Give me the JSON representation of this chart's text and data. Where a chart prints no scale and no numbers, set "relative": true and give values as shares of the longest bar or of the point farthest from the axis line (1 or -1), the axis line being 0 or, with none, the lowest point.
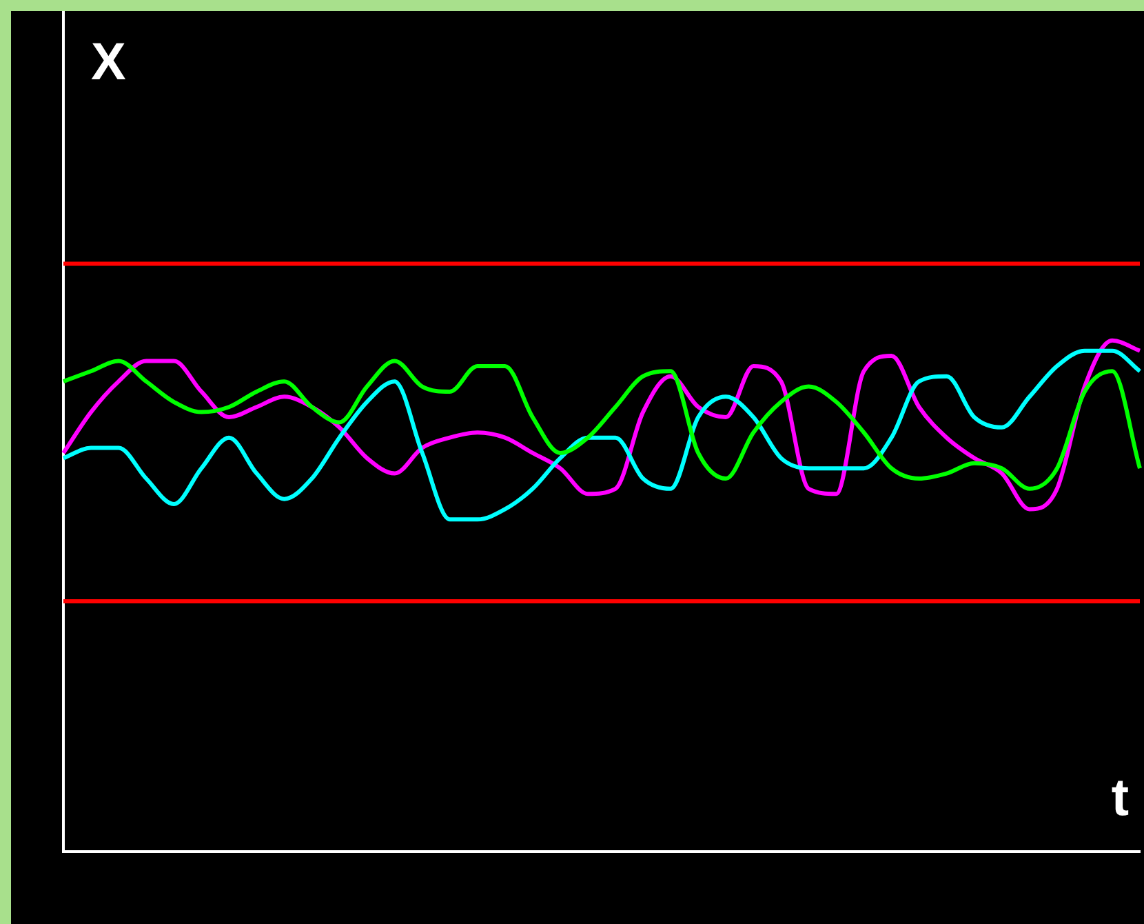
{
  "chart_data": {
    "type": "line",
    "relative": true,
    "xlabel": "t",
    "ylabel": "X",
    "legend": false,
    "marker": "none",
    "line_style": "solid",
    "categories": [
      null,
      null,
      null,
      null,
      null,
      null,
      null,
      null,
      null,
      null,
      null,
      null,
      null,
      null,
      null,
      null,
      null,
      null,
      null,
      null,
      null,
      null,
      null,
      null,
      null,
      null,
      null,
      null,
      null,
      null,
      null,
      null,
      null,
      null,
      null,
      null,
      null,
      null,
      null,
      null
    ],
    "series": [
      {
        "color": "#00ff00",
        "values": [
          0.92,
          0.94,
          0.96,
          0.92,
          0.88,
          0.86,
          0.87,
          0.9,
          0.92,
          0.87,
          0.84,
          0.91,
          0.96,
          0.91,
          0.9,
          0.95,
          0.95,
          0.85,
          0.78,
          0.81,
          0.87,
          0.93,
          0.94,
          0.78,
          0.73,
          0.82,
          0.88,
          0.91,
          0.88,
          0.82,
          0.75,
          0.73,
          0.74,
          0.76,
          0.75,
          0.71,
          0.75,
          0.9,
          0.94,
          0.75
        ]
      },
      {
        "color": "#00ffff",
        "values": [
          0.77,
          0.79,
          0.79,
          0.73,
          0.68,
          0.75,
          0.81,
          0.74,
          0.69,
          0.73,
          0.81,
          0.88,
          0.92,
          0.78,
          0.65,
          0.65,
          0.67,
          0.71,
          0.77,
          0.81,
          0.81,
          0.73,
          0.71,
          0.85,
          0.89,
          0.85,
          0.77,
          0.75,
          0.75,
          0.75,
          0.81,
          0.92,
          0.93,
          0.85,
          0.83,
          0.89,
          0.95,
          0.98,
          0.98,
          0.94
        ]
      },
      {
        "color": "#ff00ff",
        "values": [
          0.78,
          0.86,
          0.92,
          0.96,
          0.96,
          0.9,
          0.85,
          0.87,
          0.89,
          0.87,
          0.83,
          0.77,
          0.74,
          0.79,
          0.81,
          0.82,
          0.81,
          0.78,
          0.75,
          0.7,
          0.71,
          0.86,
          0.93,
          0.87,
          0.85,
          0.95,
          0.92,
          0.71,
          0.7,
          0.94,
          0.97,
          0.87,
          0.81,
          0.77,
          0.74,
          0.67,
          0.71,
          0.91,
          1.0,
          0.98
        ]
      }
    ],
    "ref_lines": [
      {
        "axis": "y",
        "value": 1.15,
        "color": "#ff0000",
        "line_style": "solid"
      },
      {
        "axis": "y",
        "value": 0.49,
        "color": "#ff0000",
        "line_style": "solid"
      }
    ]
  }
}
